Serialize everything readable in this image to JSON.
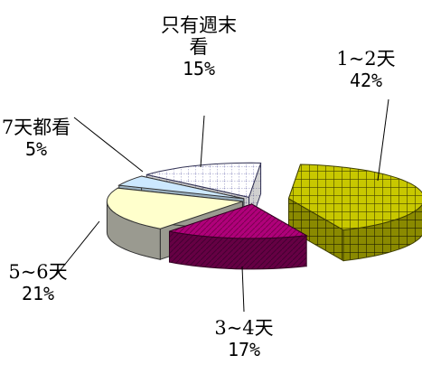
{
  "chart_data": {
    "type": "pie",
    "style": "3d-exploded",
    "title": "",
    "series": [
      {
        "categories": [
          "1~2天",
          "3~4天",
          "5~6天",
          "7天都看",
          "只有週末看"
        ],
        "values": [
          42,
          17,
          21,
          5,
          15
        ],
        "units": "%",
        "labels": [
          {
            "name_lines": [
              "1~2天"
            ],
            "percent": "42%"
          },
          {
            "name_lines": [
              "3~4天"
            ],
            "percent": "17%"
          },
          {
            "name_lines": [
              "5~6天"
            ],
            "percent": "21%"
          },
          {
            "name_lines": [
              "7天都看"
            ],
            "percent": "5%"
          },
          {
            "name_lines": [
              "只有週末",
              "看"
            ],
            "percent": "15%"
          }
        ]
      }
    ],
    "slice_colors": [
      "#c8c800",
      "#990066",
      "#ffffcc",
      "#cce8ff",
      "#ffffff"
    ],
    "slice_patterns": [
      "grid",
      "hatch",
      "solid",
      "solid",
      "dotted-grid"
    ],
    "legend": "none"
  }
}
